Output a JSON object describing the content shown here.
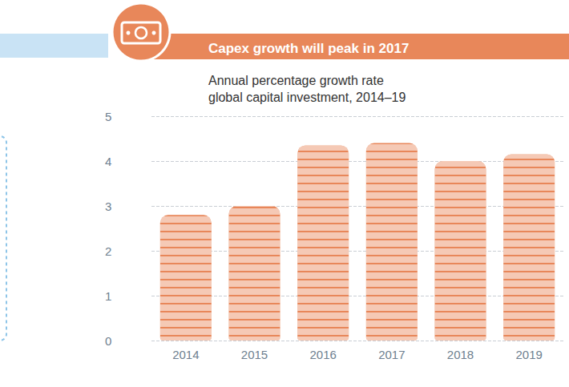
{
  "chart_data": {
    "type": "bar",
    "title": "Capex growth will peak in 2017",
    "subtitle": "Annual percentage growth rate global capital investment, 2014–19",
    "categories": [
      "2014",
      "2015",
      "2016",
      "2017",
      "2018",
      "2019"
    ],
    "values": [
      2.8,
      3.0,
      4.35,
      4.4,
      4.0,
      4.15
    ],
    "color": "#e8875a",
    "ylim": [
      0,
      5
    ],
    "yticks": [
      0,
      1,
      2,
      3,
      4,
      5
    ],
    "grid": true
  }
}
